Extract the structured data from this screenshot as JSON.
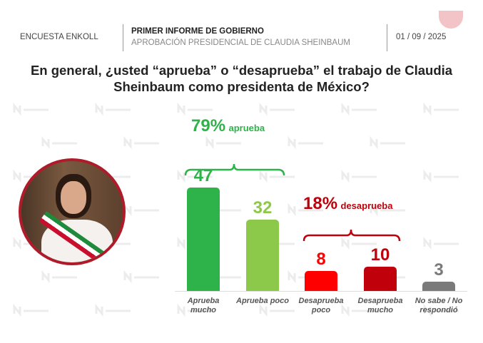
{
  "header": {
    "left": "ENCUESTA ENKOLL",
    "title": "PRIMER INFORME DE GOBIERNO",
    "subtitle": "APROBACIÓN PRESIDENCIAL DE CLAUDIA SHEINBAUM",
    "date": "01 / 09 / 2025"
  },
  "watermark": "enkoll.",
  "chart_data": {
    "type": "bar",
    "title": "En general, ¿usted “aprueba” o “desaprueba” el trabajo de Claudia Sheinbaum como presidenta de México?",
    "categories": [
      "Aprueba mucho",
      "Aprueba poco",
      "Desaprueba poco",
      "Desaprueba mucho",
      "No sabe / No respondió"
    ],
    "values": [
      47,
      32,
      8,
      10,
      3
    ],
    "colors": [
      "#2db34a",
      "#8cc94a",
      "#ff0000",
      "#c0000a",
      "#7a7a7a"
    ],
    "value_labels": [
      "47",
      "32",
      "8",
      "10",
      "3"
    ],
    "groups": [
      {
        "pct": "79%",
        "label": "aprueba",
        "color": "#2db34a"
      },
      {
        "pct": "18%",
        "label": "desaprueba",
        "color": "#c0000a"
      }
    ],
    "ylim": [
      0,
      50
    ]
  }
}
